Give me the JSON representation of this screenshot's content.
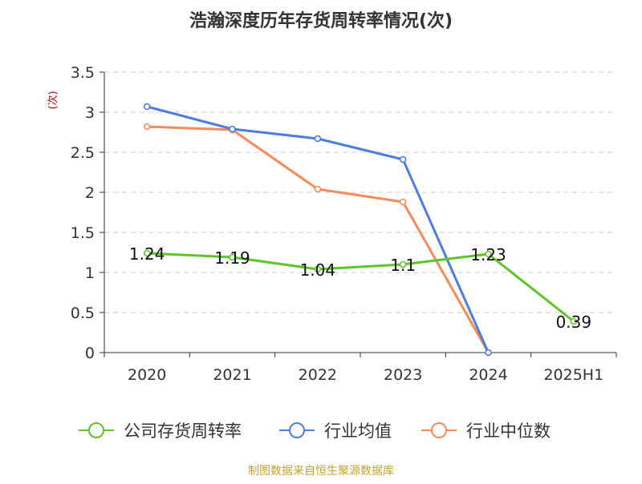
{
  "chart_data": {
    "type": "line",
    "title": "浩瀚深度历年存货周转率情况(次)",
    "ylabel": "(次)",
    "categories": [
      "2020",
      "2021",
      "2022",
      "2023",
      "2024",
      "2025H1"
    ],
    "ylim": [
      0,
      3.5
    ],
    "yticks": [
      "0",
      "0.5",
      "1",
      "1.5",
      "2",
      "2.5",
      "3",
      "3.5"
    ],
    "grid": true,
    "legend_position": "bottom",
    "series": [
      {
        "name": "公司存货周转率",
        "color": "#5cc52a",
        "values": [
          1.24,
          1.19,
          1.04,
          1.1,
          1.23,
          0.39
        ],
        "labels": [
          "1.24",
          "1.19",
          "1.04",
          "1.1",
          "1.23",
          "0.39"
        ]
      },
      {
        "name": "行业均值",
        "color": "#4a7ee0",
        "values": [
          3.07,
          2.79,
          2.67,
          2.41,
          0.0,
          null
        ]
      },
      {
        "name": "行业中位数",
        "color": "#f58c58",
        "values": [
          2.82,
          2.78,
          2.04,
          1.88,
          0.0,
          null
        ]
      }
    ],
    "source": "制图数据来自恒生聚源数据库",
    "colors": {
      "axis": "#333333",
      "grid": "#cccccc",
      "ylabel": "#cc0000",
      "source": "#c9a227"
    }
  }
}
